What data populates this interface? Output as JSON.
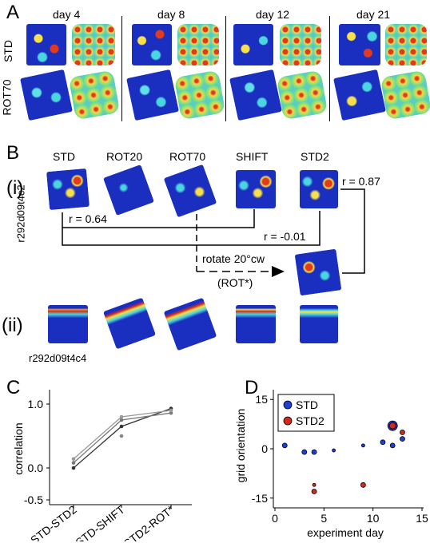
{
  "panelA": {
    "label": "A",
    "days": [
      "day 4",
      "day 8",
      "day 12",
      "day 21"
    ],
    "rows": [
      "STD",
      "ROT70"
    ]
  },
  "panelB": {
    "label": "B",
    "conditions": [
      "STD",
      "ROT20",
      "ROT70",
      "SHIFT",
      "STD2"
    ],
    "row1_label": "(i)",
    "row2_label": "(ii)",
    "cell1": "r292d09t4c2",
    "cell2": "r292d09t4c4",
    "r_std_shift": "r = 0.64",
    "r_std_std2": "r = -0.01",
    "r_std2_rot": "r = 0.87",
    "rotate_text": "rotate 20°cw",
    "rot_star": "(ROT*)"
  },
  "panelC": {
    "label": "C",
    "chart_data": {
      "type": "line",
      "ylabel": "correlation",
      "categories": [
        "STD-STD2",
        "STD-SHIFT",
        "STD2-ROT*"
      ],
      "ylim": [
        -0.5,
        1.0
      ],
      "yticks": [
        "1.0",
        "0.0",
        "-0.5"
      ],
      "series": [
        {
          "values": [
            0.0,
            0.65,
            0.93
          ]
        },
        {
          "values": [
            0.08,
            0.75,
            0.86
          ]
        },
        {
          "values": [
            0.14,
            0.8,
            0.9
          ]
        }
      ],
      "extra_points": [
        {
          "category": "STD-SHIFT",
          "y": 0.5
        }
      ]
    }
  },
  "panelD": {
    "label": "D",
    "chart_data": {
      "type": "scatter",
      "xlabel": "experiment day",
      "ylabel": "grid orientation",
      "xlim": [
        0,
        15
      ],
      "ylim": [
        -17,
        17
      ],
      "xticks": [
        "0",
        "5",
        "10",
        "15"
      ],
      "yticks": [
        "15",
        "0",
        "-15"
      ],
      "legend": [
        "STD",
        "STD2"
      ],
      "colors": {
        "STD": "#1f3fd1",
        "STD2": "#d42a1e"
      },
      "series": [
        {
          "name": "STD",
          "points": [
            [
              1,
              1,
              3
            ],
            [
              3,
              -1,
              3
            ],
            [
              4,
              -1,
              3
            ],
            [
              6,
              -0.5,
              2
            ],
            [
              9,
              1,
              2
            ],
            [
              11,
              2,
              3
            ],
            [
              12,
              7,
              6
            ],
            [
              12,
              1,
              3
            ],
            [
              13,
              3,
              3
            ]
          ]
        },
        {
          "name": "STD2",
          "points": [
            [
              4,
              -13,
              3
            ],
            [
              4,
              -11,
              2
            ],
            [
              9,
              -11,
              3
            ],
            [
              12,
              7,
              4
            ],
            [
              13,
              5,
              3
            ]
          ]
        }
      ]
    }
  }
}
